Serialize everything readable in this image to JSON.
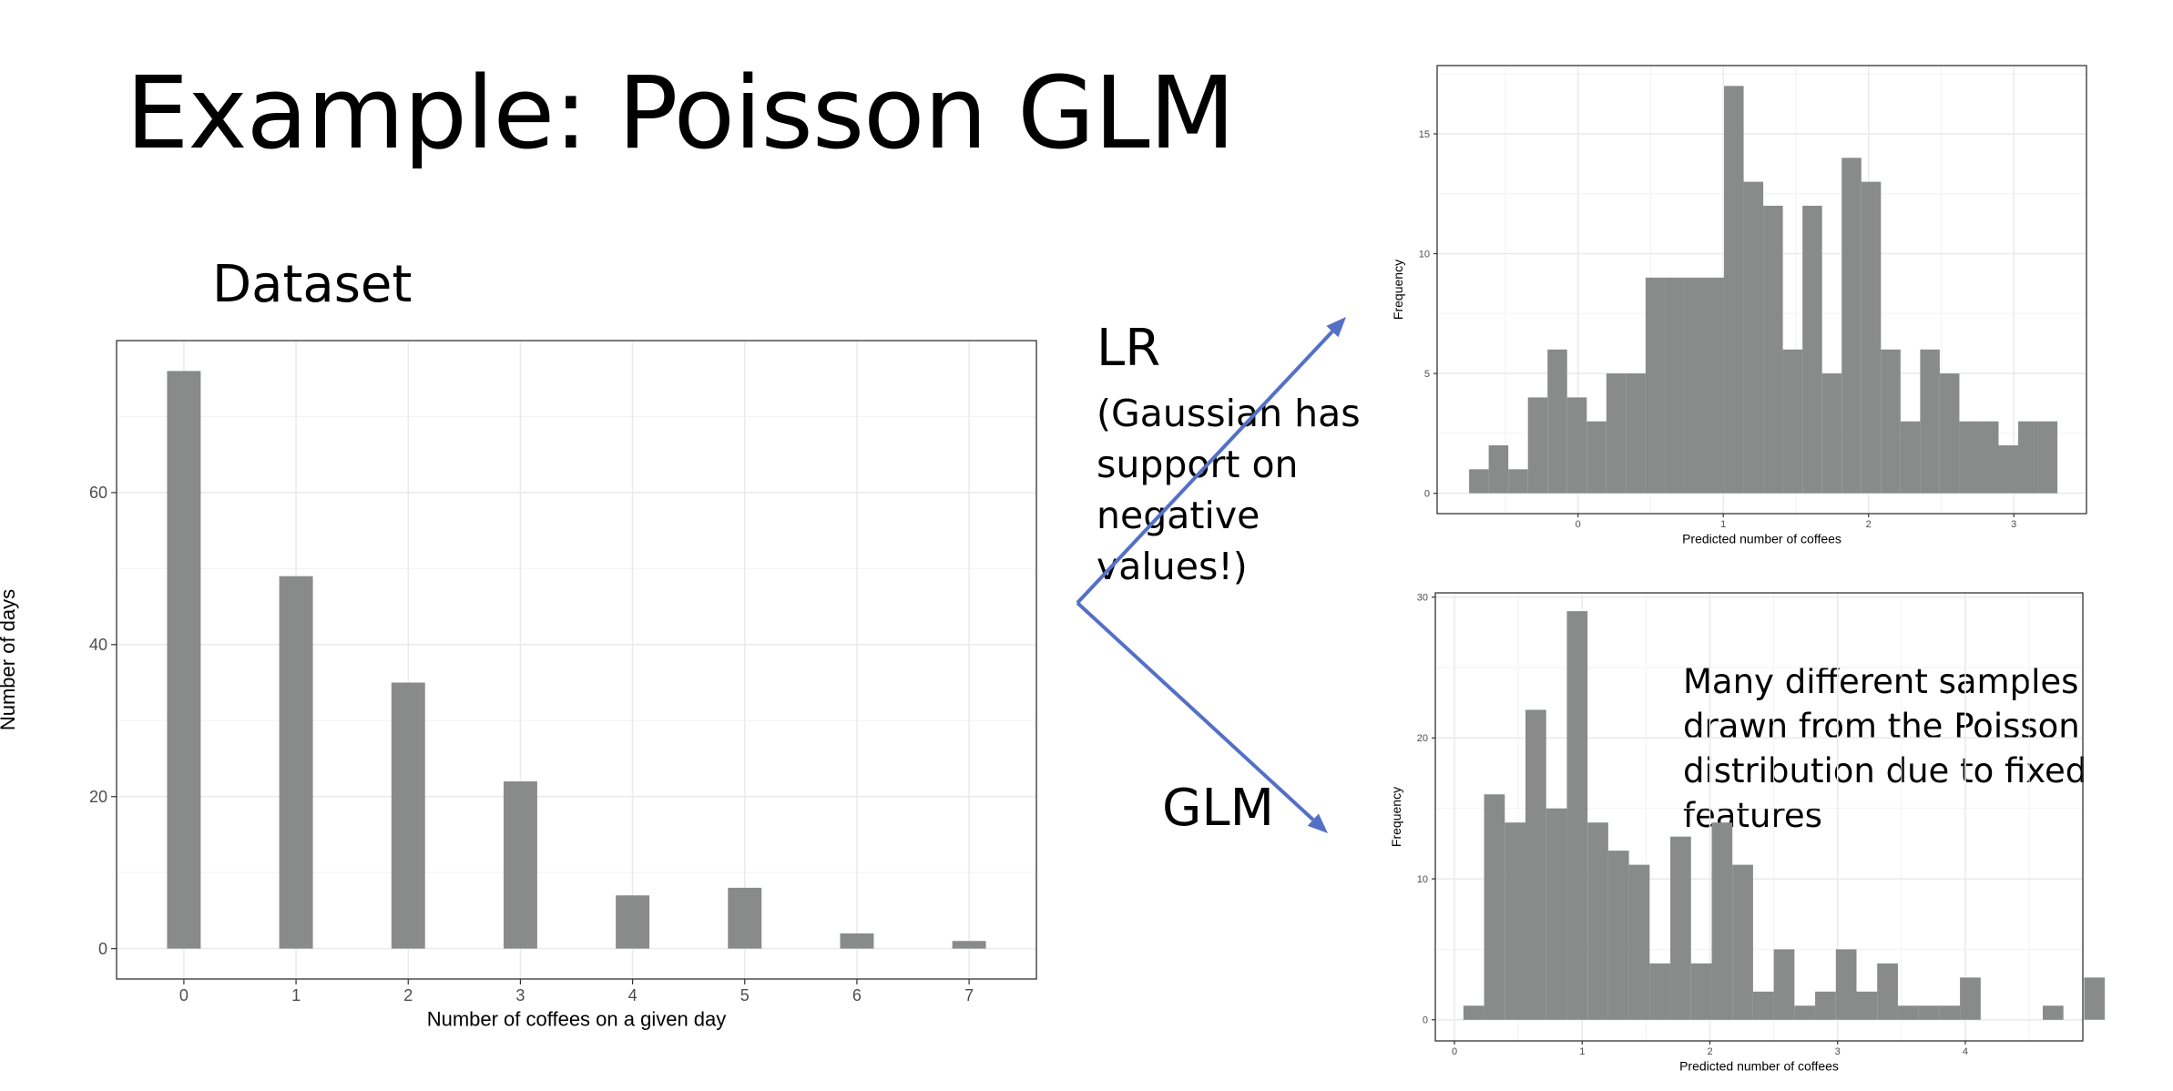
{
  "slide": {
    "title": "Example: Poisson GLM",
    "dataset_label": "Dataset",
    "lr_label": "LR",
    "lr_note": "(Gaussian has support on negative values!)",
    "glm_label": "GLM",
    "samples_note": "Many different samples drawn from the Poisson distribution due to fixed features",
    "arrow_color": "#5470C6"
  },
  "chart_data": [
    {
      "type": "bar",
      "xlabel": "Number of coffees on a given day",
      "ylabel": "Number of days",
      "categories": [
        "0",
        "1",
        "2",
        "3",
        "4",
        "5",
        "6",
        "7"
      ],
      "values": [
        76,
        49,
        35,
        22,
        7,
        8,
        2,
        1
      ],
      "ylim": [
        -4,
        80
      ],
      "yticks": [
        0,
        20,
        40,
        60
      ],
      "bar_color": "#898B8A",
      "grid": true
    },
    {
      "type": "bar",
      "subtype": "histogram",
      "xlabel": "Predicted number of coffees",
      "ylabel": "Frequency",
      "bin_start": -0.75,
      "bin_width": 0.135,
      "values": [
        1,
        2,
        1,
        4,
        6,
        4,
        3,
        5,
        5,
        9,
        9,
        9,
        9,
        17,
        13,
        12,
        6,
        12,
        5,
        14,
        13,
        6,
        3,
        6,
        5,
        3,
        3,
        2,
        3,
        3
      ],
      "xlim": [
        -0.97,
        3.5
      ],
      "ylim": [
        -0.85,
        17.85
      ],
      "xticks": [
        0,
        1,
        2,
        3
      ],
      "yticks": [
        0,
        5,
        10,
        15
      ],
      "bar_color": "#898B8A",
      "grid": true
    },
    {
      "type": "bar",
      "subtype": "histogram",
      "xlabel": "Predicted number of coffees",
      "ylabel": "Frequency",
      "bin_start": 0.07,
      "bin_width": 0.162,
      "values": [
        1,
        16,
        14,
        22,
        15,
        29,
        14,
        12,
        11,
        4,
        13,
        4,
        14,
        11,
        2,
        5,
        1,
        2,
        5,
        2,
        4,
        1,
        1,
        1,
        3,
        0,
        0,
        0,
        1,
        0,
        3
      ],
      "xlim": [
        -0.15,
        4.92
      ],
      "ylim": [
        -1.5,
        30.3
      ],
      "xticks": [
        0,
        1,
        2,
        3,
        4
      ],
      "yticks": [
        0,
        10,
        20,
        30
      ],
      "bar_color": "#898B8A",
      "grid": true
    }
  ]
}
